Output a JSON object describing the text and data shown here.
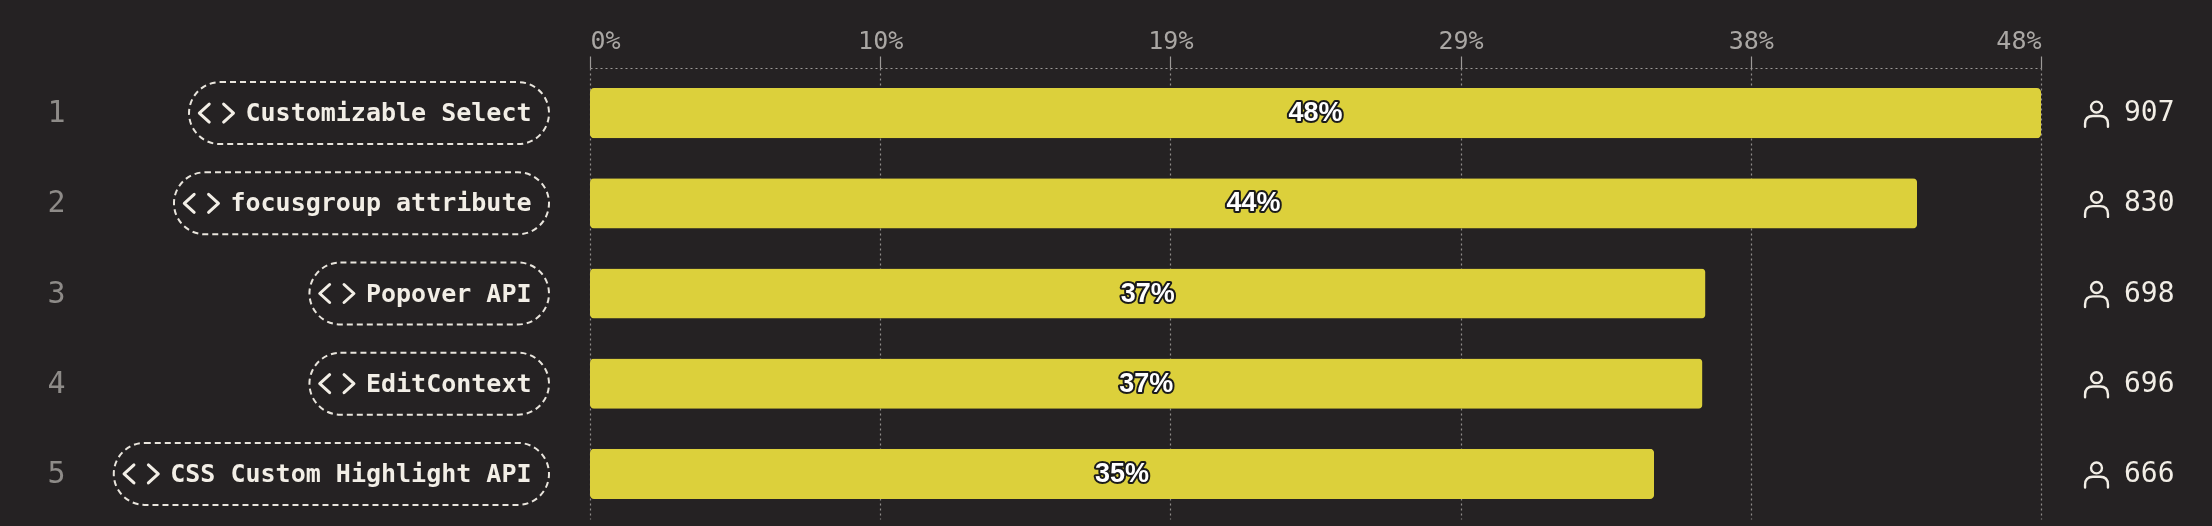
{
  "chart_data": {
    "type": "bar",
    "orientation": "horizontal",
    "categories": [
      "Customizable Select",
      "focusgroup attribute",
      "Popover API",
      "EditContext",
      "CSS Custom Highlight API"
    ],
    "values": [
      48,
      43.9,
      36.9,
      36.8,
      35.2
    ],
    "value_labels": [
      "48%",
      "44%",
      "37%",
      "37%",
      "35%"
    ],
    "color": "#dcd03b",
    "xlim": [
      0,
      48
    ],
    "xticks": [
      {
        "value": 0,
        "label": "0%"
      },
      {
        "value": 9.6,
        "label": "10%"
      },
      {
        "value": 19.2,
        "label": "19%"
      },
      {
        "value": 28.8,
        "label": "29%"
      },
      {
        "value": 38.4,
        "label": "38%"
      },
      {
        "value": 48,
        "label": "48%"
      }
    ],
    "grid": "x",
    "annotations": [
      "1",
      "2",
      "3",
      "4",
      "5",
      "907",
      "830",
      "698",
      "696",
      "666"
    ]
  }
}
